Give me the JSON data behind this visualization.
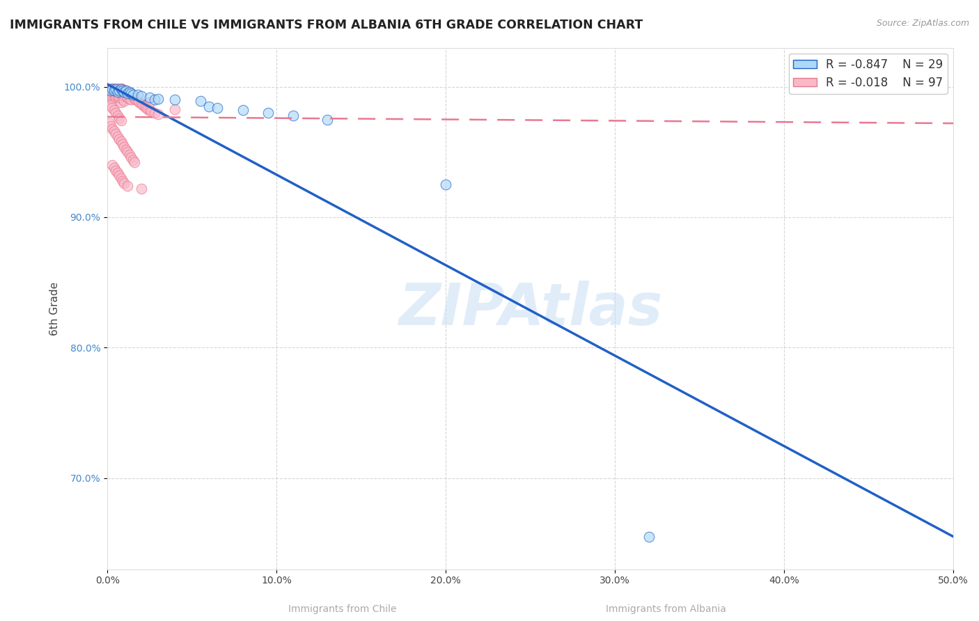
{
  "title": "IMMIGRANTS FROM CHILE VS IMMIGRANTS FROM ALBANIA 6TH GRADE CORRELATION CHART",
  "source": "Source: ZipAtlas.com",
  "xlabel_chile": "Immigrants from Chile",
  "xlabel_albania": "Immigrants from Albania",
  "ylabel": "6th Grade",
  "xlim": [
    0.0,
    0.5
  ],
  "ylim": [
    0.63,
    1.03
  ],
  "xticks": [
    0.0,
    0.1,
    0.2,
    0.3,
    0.4,
    0.5
  ],
  "xtick_labels": [
    "0.0%",
    "10.0%",
    "20.0%",
    "30.0%",
    "40.0%",
    "50.0%"
  ],
  "yticks": [
    0.7,
    0.8,
    0.9,
    1.0
  ],
  "ytick_labels": [
    "70.0%",
    "80.0%",
    "90.0%",
    "100.0%"
  ],
  "chile_R": -0.847,
  "chile_N": 29,
  "albania_R": -0.018,
  "albania_N": 97,
  "chile_color": "#add8f7",
  "albania_color": "#f9b8c8",
  "chile_line_color": "#2060c8",
  "albania_line_color": "#e87890",
  "watermark": "ZIPAtlas",
  "watermark_color": "#c8dff5",
  "chile_line_x0": 0.0,
  "chile_line_y0": 1.002,
  "chile_line_x1": 0.5,
  "chile_line_y1": 0.655,
  "albania_line_x0": 0.0,
  "albania_line_y0": 0.977,
  "albania_line_x1": 0.5,
  "albania_line_y1": 0.972,
  "chile_dots": [
    [
      0.002,
      0.997
    ],
    [
      0.003,
      0.998
    ],
    [
      0.004,
      0.997
    ],
    [
      0.005,
      0.998
    ],
    [
      0.006,
      0.996
    ],
    [
      0.007,
      0.997
    ],
    [
      0.008,
      0.998
    ],
    [
      0.009,
      0.997
    ],
    [
      0.01,
      0.996
    ],
    [
      0.011,
      0.997
    ],
    [
      0.012,
      0.995
    ],
    [
      0.013,
      0.996
    ],
    [
      0.014,
      0.995
    ],
    [
      0.015,
      0.994
    ],
    [
      0.018,
      0.994
    ],
    [
      0.02,
      0.993
    ],
    [
      0.025,
      0.992
    ],
    [
      0.028,
      0.99
    ],
    [
      0.03,
      0.991
    ],
    [
      0.04,
      0.99
    ],
    [
      0.055,
      0.989
    ],
    [
      0.06,
      0.985
    ],
    [
      0.065,
      0.984
    ],
    [
      0.08,
      0.982
    ],
    [
      0.095,
      0.98
    ],
    [
      0.11,
      0.978
    ],
    [
      0.13,
      0.975
    ],
    [
      0.32,
      0.655
    ],
    [
      0.2,
      0.925
    ]
  ],
  "albania_dots": [
    [
      0.001,
      0.998
    ],
    [
      0.001,
      0.996
    ],
    [
      0.001,
      0.994
    ],
    [
      0.001,
      0.992
    ],
    [
      0.002,
      0.999
    ],
    [
      0.002,
      0.997
    ],
    [
      0.002,
      0.995
    ],
    [
      0.002,
      0.993
    ],
    [
      0.002,
      0.991
    ],
    [
      0.003,
      0.998
    ],
    [
      0.003,
      0.996
    ],
    [
      0.003,
      0.994
    ],
    [
      0.003,
      0.992
    ],
    [
      0.004,
      0.999
    ],
    [
      0.004,
      0.997
    ],
    [
      0.004,
      0.995
    ],
    [
      0.004,
      0.993
    ],
    [
      0.005,
      0.998
    ],
    [
      0.005,
      0.996
    ],
    [
      0.005,
      0.994
    ],
    [
      0.005,
      0.992
    ],
    [
      0.006,
      0.999
    ],
    [
      0.006,
      0.997
    ],
    [
      0.006,
      0.995
    ],
    [
      0.006,
      0.993
    ],
    [
      0.007,
      0.998
    ],
    [
      0.007,
      0.996
    ],
    [
      0.007,
      0.994
    ],
    [
      0.007,
      0.992
    ],
    [
      0.008,
      0.999
    ],
    [
      0.008,
      0.997
    ],
    [
      0.008,
      0.995
    ],
    [
      0.008,
      0.988
    ],
    [
      0.009,
      0.998
    ],
    [
      0.009,
      0.994
    ],
    [
      0.009,
      0.99
    ],
    [
      0.01,
      0.997
    ],
    [
      0.01,
      0.993
    ],
    [
      0.01,
      0.989
    ],
    [
      0.011,
      0.997
    ],
    [
      0.011,
      0.993
    ],
    [
      0.012,
      0.996
    ],
    [
      0.012,
      0.992
    ],
    [
      0.013,
      0.995
    ],
    [
      0.013,
      0.991
    ],
    [
      0.014,
      0.994
    ],
    [
      0.014,
      0.99
    ],
    [
      0.015,
      0.993
    ],
    [
      0.016,
      0.991
    ],
    [
      0.017,
      0.99
    ],
    [
      0.018,
      0.989
    ],
    [
      0.019,
      0.988
    ],
    [
      0.02,
      0.987
    ],
    [
      0.021,
      0.986
    ],
    [
      0.022,
      0.985
    ],
    [
      0.023,
      0.984
    ],
    [
      0.024,
      0.983
    ],
    [
      0.025,
      0.982
    ],
    [
      0.026,
      0.981
    ],
    [
      0.028,
      0.98
    ],
    [
      0.03,
      0.979
    ],
    [
      0.002,
      0.986
    ],
    [
      0.003,
      0.984
    ],
    [
      0.004,
      0.982
    ],
    [
      0.005,
      0.98
    ],
    [
      0.006,
      0.978
    ],
    [
      0.007,
      0.976
    ],
    [
      0.008,
      0.974
    ],
    [
      0.001,
      0.972
    ],
    [
      0.002,
      0.97
    ],
    [
      0.003,
      0.968
    ],
    [
      0.004,
      0.966
    ],
    [
      0.005,
      0.964
    ],
    [
      0.006,
      0.962
    ],
    [
      0.007,
      0.96
    ],
    [
      0.008,
      0.958
    ],
    [
      0.009,
      0.956
    ],
    [
      0.01,
      0.954
    ],
    [
      0.011,
      0.952
    ],
    [
      0.012,
      0.95
    ],
    [
      0.013,
      0.948
    ],
    [
      0.014,
      0.946
    ],
    [
      0.015,
      0.944
    ],
    [
      0.016,
      0.942
    ],
    [
      0.003,
      0.94
    ],
    [
      0.004,
      0.938
    ],
    [
      0.005,
      0.936
    ],
    [
      0.006,
      0.934
    ],
    [
      0.007,
      0.932
    ],
    [
      0.008,
      0.93
    ],
    [
      0.009,
      0.928
    ],
    [
      0.01,
      0.926
    ],
    [
      0.012,
      0.924
    ],
    [
      0.02,
      0.922
    ],
    [
      0.025,
      0.988
    ],
    [
      0.04,
      0.983
    ]
  ]
}
